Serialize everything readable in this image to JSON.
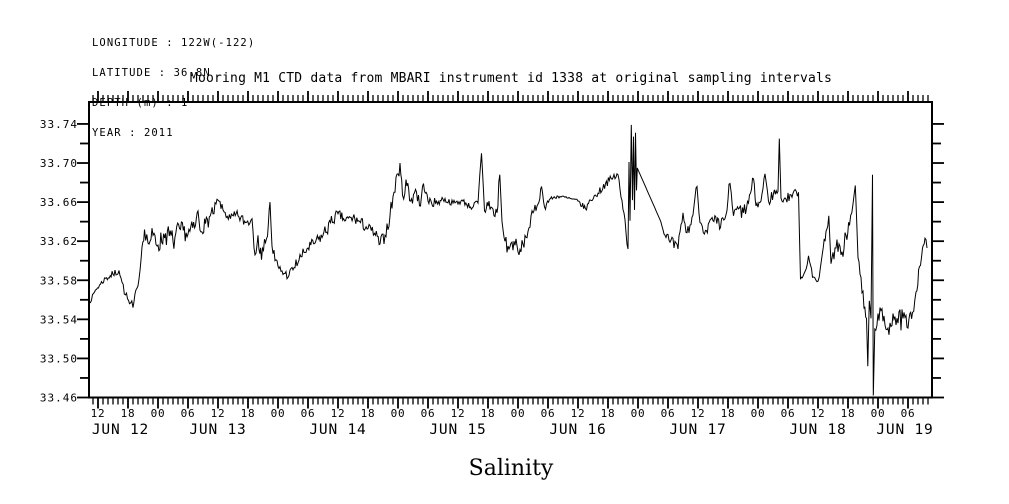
{
  "page": {
    "background": "#ffffff",
    "foreground": "#000000"
  },
  "header": {
    "lines": [
      "LONGITUDE : 122W(-122)",
      "LATITUDE : 36.8N",
      "DEPTH (m) : 1",
      "YEAR : 2011"
    ]
  },
  "title": "Mooring M1 CTD data from MBARI instrument id 1338 at original sampling intervals",
  "chart_data": {
    "type": "line",
    "title": "Mooring M1 CTD data from MBARI instrument id 1338 at original sampling intervals",
    "xlabel": "Salinity",
    "x_unit": "hours since JUN 12 2011 00:00",
    "xlim": [
      10.2,
      178.8
    ],
    "ylim": [
      33.46,
      33.762
    ],
    "grid": false,
    "legend": "none",
    "line_color": "#000000",
    "y_minor_step": 0.02,
    "y_tick_labels": [
      "33.46",
      "33.50",
      "33.54",
      "33.58",
      "33.62",
      "33.66",
      "33.70",
      "33.74"
    ],
    "x_minor_step_hours": 1,
    "x_major_step_hours": 6,
    "hour_labels": [
      {
        "t": 12,
        "text": "12"
      },
      {
        "t": 18,
        "text": "18"
      },
      {
        "t": 24,
        "text": "00"
      },
      {
        "t": 30,
        "text": "06"
      },
      {
        "t": 36,
        "text": "12"
      },
      {
        "t": 42,
        "text": "18"
      },
      {
        "t": 48,
        "text": "00"
      },
      {
        "t": 54,
        "text": "06"
      },
      {
        "t": 60,
        "text": "12"
      },
      {
        "t": 66,
        "text": "18"
      },
      {
        "t": 72,
        "text": "00"
      },
      {
        "t": 78,
        "text": "06"
      },
      {
        "t": 84,
        "text": "12"
      },
      {
        "t": 90,
        "text": "18"
      },
      {
        "t": 96,
        "text": "00"
      },
      {
        "t": 102,
        "text": "06"
      },
      {
        "t": 108,
        "text": "12"
      },
      {
        "t": 114,
        "text": "18"
      },
      {
        "t": 120,
        "text": "00"
      },
      {
        "t": 126,
        "text": "06"
      },
      {
        "t": 132,
        "text": "12"
      },
      {
        "t": 138,
        "text": "18"
      },
      {
        "t": 144,
        "text": "00"
      },
      {
        "t": 150,
        "text": "06"
      },
      {
        "t": 156,
        "text": "12"
      },
      {
        "t": 162,
        "text": "18"
      },
      {
        "t": 168,
        "text": "00"
      },
      {
        "t": 174,
        "text": "06"
      }
    ],
    "day_labels": [
      {
        "t": 16.5,
        "text": "JUN 12"
      },
      {
        "t": 36,
        "text": "JUN 13"
      },
      {
        "t": 60,
        "text": "JUN 14"
      },
      {
        "t": 84,
        "text": "JUN 15"
      },
      {
        "t": 108,
        "text": "JUN 16"
      },
      {
        "t": 132,
        "text": "JUN 17"
      },
      {
        "t": 156,
        "text": "JUN 18"
      },
      {
        "t": 173.4,
        "text": "JUN 19"
      }
    ],
    "noise_seed": 7,
    "sample_step_hours": 0.2,
    "series": [
      {
        "name": "salinity",
        "keypoints": [
          [
            10.3,
            33.557,
            0.002
          ],
          [
            11.5,
            33.57,
            0.003
          ],
          [
            12.5,
            33.576,
            0.003
          ],
          [
            13.5,
            33.582,
            0.004
          ],
          [
            15.0,
            33.586,
            0.004
          ],
          [
            16.2,
            33.59,
            0.003
          ],
          [
            16.8,
            33.578,
            0.004
          ],
          [
            17.5,
            33.565,
            0.005
          ],
          [
            18.3,
            33.556,
            0.006
          ],
          [
            19.0,
            33.552,
            0.005
          ],
          [
            19.8,
            33.572,
            0.004
          ],
          [
            20.4,
            33.59,
            0.004
          ],
          [
            20.8,
            33.614,
            0.006
          ],
          [
            21.3,
            33.632,
            0.008
          ],
          [
            22.0,
            33.618,
            0.01
          ],
          [
            23.0,
            33.626,
            0.01
          ],
          [
            24.0,
            33.616,
            0.01
          ],
          [
            25.5,
            33.628,
            0.012
          ],
          [
            27.0,
            33.62,
            0.012
          ],
          [
            28.5,
            33.632,
            0.009
          ],
          [
            30.0,
            33.627,
            0.009
          ],
          [
            31.5,
            33.636,
            0.007
          ],
          [
            32.0,
            33.651,
            0.003
          ],
          [
            32.4,
            33.631,
            0.007
          ],
          [
            33.5,
            33.638,
            0.008
          ],
          [
            35.0,
            33.648,
            0.006
          ],
          [
            36.0,
            33.662,
            0.004
          ],
          [
            37.2,
            33.65,
            0.005
          ],
          [
            38.5,
            33.643,
            0.006
          ],
          [
            40.0,
            33.646,
            0.006
          ],
          [
            41.5,
            33.639,
            0.007
          ],
          [
            42.8,
            33.643,
            0.008
          ],
          [
            43.4,
            33.606,
            0.005
          ],
          [
            44.0,
            33.626,
            0.008
          ],
          [
            44.7,
            33.601,
            0.005
          ],
          [
            45.3,
            33.622,
            0.007
          ],
          [
            45.9,
            33.625,
            0.009
          ],
          [
            46.4,
            33.66,
            0.004
          ],
          [
            46.8,
            33.615,
            0.01
          ],
          [
            47.4,
            33.6,
            0.007
          ],
          [
            48.2,
            33.592,
            0.005
          ],
          [
            49.2,
            33.587,
            0.005
          ],
          [
            50.2,
            33.585,
            0.006
          ],
          [
            51.2,
            33.593,
            0.006
          ],
          [
            52.6,
            33.604,
            0.006
          ],
          [
            54.0,
            33.613,
            0.006
          ],
          [
            55.5,
            33.619,
            0.006
          ],
          [
            57.0,
            33.626,
            0.008
          ],
          [
            58.5,
            33.639,
            0.006
          ],
          [
            60.0,
            33.648,
            0.005
          ],
          [
            61.5,
            33.641,
            0.006
          ],
          [
            63.0,
            33.644,
            0.006
          ],
          [
            64.5,
            33.639,
            0.006
          ],
          [
            66.0,
            33.633,
            0.006
          ],
          [
            67.3,
            33.628,
            0.007
          ],
          [
            68.4,
            33.617,
            0.007
          ],
          [
            69.4,
            33.626,
            0.008
          ],
          [
            70.4,
            33.646,
            0.01
          ],
          [
            71.2,
            33.67,
            0.01
          ],
          [
            72.0,
            33.689,
            0.009
          ],
          [
            72.4,
            33.7,
            0.005
          ],
          [
            72.9,
            33.667,
            0.011
          ],
          [
            73.6,
            33.683,
            0.009
          ],
          [
            74.5,
            33.661,
            0.009
          ],
          [
            75.5,
            33.673,
            0.008
          ],
          [
            76.5,
            33.656,
            0.007
          ],
          [
            77.1,
            33.679,
            0.004
          ],
          [
            78.0,
            33.661,
            0.005
          ],
          [
            79.5,
            33.659,
            0.004
          ],
          [
            81.0,
            33.663,
            0.003
          ],
          [
            83.0,
            33.659,
            0.003
          ],
          [
            85.0,
            33.661,
            0.003
          ],
          [
            86.5,
            33.655,
            0.004
          ],
          [
            88.0,
            33.659,
            0.005
          ],
          [
            88.7,
            33.71,
            0.003
          ],
          [
            89.3,
            33.651,
            0.009
          ],
          [
            90.2,
            33.661,
            0.011
          ],
          [
            91.2,
            33.646,
            0.012
          ],
          [
            91.8,
            33.649,
            0.012
          ],
          [
            92.35,
            33.688,
            0.003
          ],
          [
            92.8,
            33.64,
            0.012
          ],
          [
            93.4,
            33.62,
            0.01
          ],
          [
            94.2,
            33.612,
            0.009
          ],
          [
            95.2,
            33.62,
            0.009
          ],
          [
            96.2,
            33.606,
            0.007
          ],
          [
            97.0,
            33.617,
            0.007
          ],
          [
            98.0,
            33.63,
            0.006
          ],
          [
            99.0,
            33.649,
            0.005
          ],
          [
            100.0,
            33.658,
            0.004
          ],
          [
            100.7,
            33.676,
            0.002
          ],
          [
            101.3,
            33.655,
            0.004
          ],
          [
            102.3,
            33.663,
            0.002
          ],
          [
            104.0,
            33.666,
            0.002
          ],
          [
            106.0,
            33.664,
            0.002
          ],
          [
            108.0,
            33.661,
            0.003
          ],
          [
            109.5,
            33.653,
            0.003
          ],
          [
            110.5,
            33.662,
            0.003
          ],
          [
            112.0,
            33.669,
            0.004
          ],
          [
            113.5,
            33.679,
            0.004
          ],
          [
            115.0,
            33.685,
            0.005
          ],
          [
            116.0,
            33.688,
            0.005
          ],
          [
            116.6,
            33.665,
            0.005
          ],
          [
            117.4,
            33.642,
            0.006
          ],
          [
            118.0,
            33.612,
            0.004
          ],
          [
            118.2,
            33.701,
            0.002
          ],
          [
            118.4,
            33.641,
            0.008
          ],
          [
            118.65,
            33.739,
            0.002
          ],
          [
            118.9,
            33.662,
            0.008
          ],
          [
            119.1,
            33.727,
            0.002
          ],
          [
            119.3,
            33.652,
            0.008
          ],
          [
            119.5,
            33.731,
            0.002
          ],
          [
            119.7,
            33.672,
            0.004
          ],
          [
            119.85,
            33.695,
            0.0
          ],
          [
            124.4,
            33.642,
            0.002
          ],
          [
            125.4,
            33.626,
            0.007
          ],
          [
            126.4,
            33.619,
            0.007
          ],
          [
            128.0,
            33.612,
            0.007
          ],
          [
            129.0,
            33.649,
            0.004
          ],
          [
            129.6,
            33.629,
            0.006
          ],
          [
            130.6,
            33.637,
            0.006
          ],
          [
            131.8,
            33.676,
            0.003
          ],
          [
            132.4,
            33.639,
            0.006
          ],
          [
            133.5,
            33.631,
            0.008
          ],
          [
            135.0,
            33.641,
            0.008
          ],
          [
            136.5,
            33.634,
            0.008
          ],
          [
            137.6,
            33.647,
            0.008
          ],
          [
            138.4,
            33.679,
            0.004
          ],
          [
            139.1,
            33.646,
            0.008
          ],
          [
            140.1,
            33.653,
            0.008
          ],
          [
            141.1,
            33.649,
            0.008
          ],
          [
            142.1,
            33.659,
            0.006
          ],
          [
            143.1,
            33.684,
            0.004
          ],
          [
            143.6,
            33.656,
            0.006
          ],
          [
            144.6,
            33.661,
            0.006
          ],
          [
            145.4,
            33.689,
            0.003
          ],
          [
            146.1,
            33.661,
            0.006
          ],
          [
            147.1,
            33.669,
            0.005
          ],
          [
            148.0,
            33.671,
            0.003
          ],
          [
            148.25,
            33.725,
            0.002
          ],
          [
            148.6,
            33.664,
            0.005
          ],
          [
            149.6,
            33.663,
            0.005
          ],
          [
            151.0,
            33.669,
            0.004
          ],
          [
            152.1,
            33.67,
            0.002
          ],
          [
            152.5,
            33.581,
            0.003
          ],
          [
            153.4,
            33.589,
            0.004
          ],
          [
            154.1,
            33.605,
            0.004
          ],
          [
            154.9,
            33.583,
            0.004
          ],
          [
            156.0,
            33.579,
            0.004
          ],
          [
            156.7,
            33.601,
            0.005
          ],
          [
            157.6,
            33.63,
            0.006
          ],
          [
            158.15,
            33.646,
            0.004
          ],
          [
            158.6,
            33.597,
            0.006
          ],
          [
            159.6,
            33.613,
            0.011
          ],
          [
            160.6,
            33.606,
            0.011
          ],
          [
            161.6,
            33.626,
            0.01
          ],
          [
            162.3,
            33.636,
            0.009
          ],
          [
            163.0,
            33.658,
            0.006
          ],
          [
            163.45,
            33.677,
            0.003
          ],
          [
            164.0,
            33.603,
            0.008
          ],
          [
            164.6,
            33.583,
            0.008
          ],
          [
            165.2,
            33.551,
            0.008
          ],
          [
            165.7,
            33.541,
            0.006
          ],
          [
            165.95,
            33.492,
            0.003
          ],
          [
            166.25,
            33.559,
            0.006
          ],
          [
            166.6,
            33.541,
            0.006
          ],
          [
            166.9,
            33.688,
            0.001
          ],
          [
            167.05,
            33.462,
            0.001
          ],
          [
            167.35,
            33.53,
            0.008
          ],
          [
            168.0,
            33.546,
            0.012
          ],
          [
            169.0,
            33.538,
            0.012
          ],
          [
            170.0,
            33.531,
            0.012
          ],
          [
            171.0,
            33.546,
            0.012
          ],
          [
            172.0,
            33.536,
            0.012
          ],
          [
            173.0,
            33.541,
            0.012
          ],
          [
            174.0,
            33.531,
            0.01
          ],
          [
            174.9,
            33.547,
            0.008
          ],
          [
            175.6,
            33.568,
            0.006
          ],
          [
            176.3,
            33.594,
            0.006
          ],
          [
            176.9,
            33.613,
            0.005
          ],
          [
            177.4,
            33.623,
            0.004
          ],
          [
            177.8,
            33.613,
            0.003
          ]
        ]
      }
    ]
  }
}
